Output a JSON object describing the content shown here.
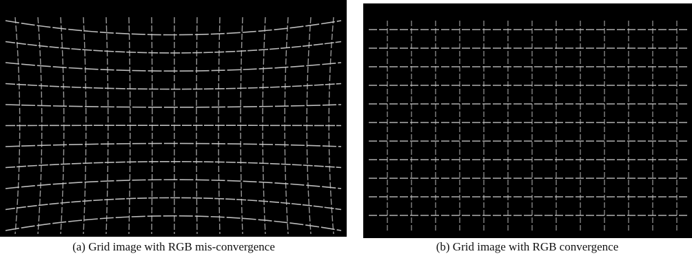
{
  "figure": {
    "panels": [
      {
        "caption": "(a) Grid image with RGB mis-convergence"
      },
      {
        "caption": "(b) Grid image with RGB convergence"
      }
    ]
  }
}
